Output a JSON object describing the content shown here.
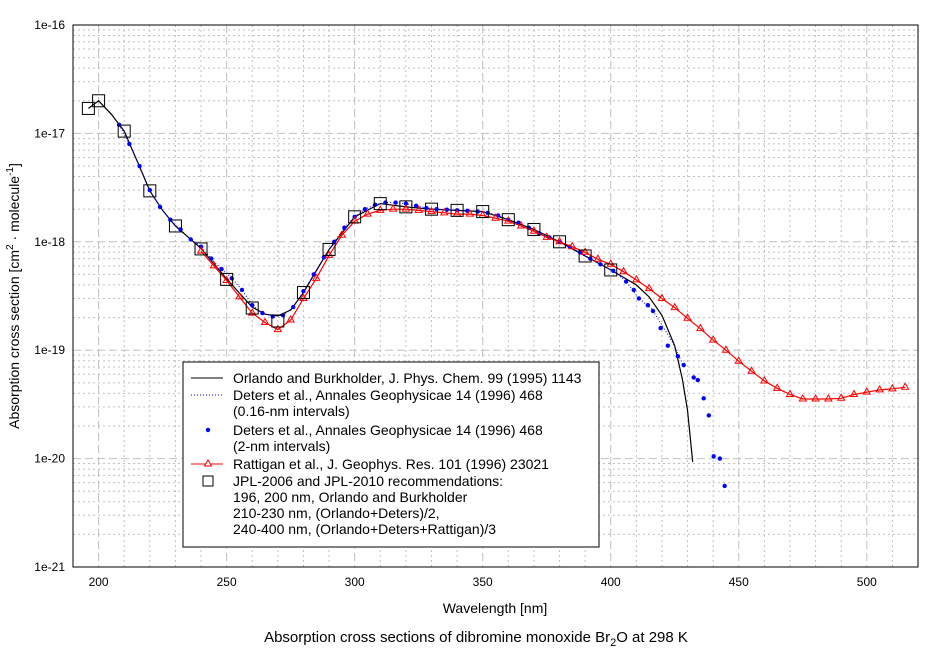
{
  "chart_data": {
    "type": "scatter",
    "title": {
      "prefix": "Absorption cross sections of dibromine monoxide Br",
      "sub": "2",
      "suffix": "O at 298 K"
    },
    "xlabel": "Wavelength [nm]",
    "ylabel": {
      "a": "Absorption cross section [cm",
      "sup1": "2",
      "b": " · molecule",
      "sup2": "-1",
      "c": "]"
    },
    "xlim": [
      190,
      520
    ],
    "ylim": [
      1e-21,
      1e-16
    ],
    "yscale": "log",
    "grid": true,
    "x_ticks": [
      200,
      250,
      300,
      350,
      400,
      450,
      500
    ],
    "x_tick_labels": [
      "200",
      "250",
      "300",
      "350",
      "400",
      "450",
      "500"
    ],
    "y_ticks": [
      1e-16,
      1e-17,
      1e-18,
      1e-19,
      1e-20,
      1e-21
    ],
    "y_tick_labels": [
      "1e-16",
      "1e-17",
      "1e-18",
      "1e-19",
      "1e-20",
      "1e-21"
    ],
    "legend_position": "bottom-left",
    "series": [
      {
        "name": "Orlando and Burkholder, J. Phys. Chem. 99 (1995) 1143",
        "style": "solid-line",
        "color": "#000000",
        "x": [
          196,
          200,
          205,
          210,
          215,
          220,
          225,
          230,
          240,
          250,
          260,
          265,
          270,
          275,
          280,
          285,
          290,
          300,
          310,
          320,
          330,
          340,
          350,
          360,
          370,
          380,
          390,
          400,
          410,
          415,
          420,
          425,
          428,
          430,
          432
        ],
        "y": [
          1.7e-17,
          2e-17,
          1.5e-17,
          1.05e-17,
          5.6e-18,
          2.95e-18,
          1.95e-18,
          1.4e-18,
          8.7e-19,
          4.55e-19,
          2.5e-19,
          2.15e-19,
          2.07e-19,
          2.35e-19,
          3.4e-19,
          5.4e-19,
          8.5e-19,
          1.7e-18,
          2.25e-18,
          2.1e-18,
          2e-18,
          1.95e-18,
          1.9e-18,
          1.6e-18,
          1.3e-18,
          1e-18,
          7.4e-19,
          5.5e-19,
          4e-19,
          3.1e-19,
          2.1e-19,
          1.1e-19,
          5.4e-20,
          2.8e-20,
          9.3e-21
        ]
      },
      {
        "name": "Deters et al., Annales Geophysicae 14 (1996) 468",
        "name_line2": "(0.16-nm intervals)",
        "style": "dotted-line",
        "color": "#0000ff",
        "x": [
          208,
          212,
          216,
          220,
          224,
          228,
          232,
          236,
          240,
          244,
          248,
          252,
          256,
          260,
          264,
          268,
          272,
          276,
          280,
          284,
          288,
          292,
          296,
          300,
          304,
          308,
          312,
          316,
          320,
          324,
          328,
          332,
          336,
          340,
          344,
          348,
          352,
          356,
          360,
          364,
          368,
          372,
          376,
          380,
          384,
          388,
          392,
          396,
          401,
          406,
          411,
          416,
          420,
          424,
          428
        ],
        "y": [
          1.2e-17,
          8e-18,
          5e-18,
          3e-18,
          2.1e-18,
          1.6e-18,
          1.3e-18,
          1.05e-18,
          9e-19,
          7e-19,
          5.6e-19,
          4.6e-19,
          3.6e-19,
          2.6e-19,
          2.2e-19,
          2.05e-19,
          2.1e-19,
          2.5e-19,
          3.5e-19,
          5e-19,
          7.2e-19,
          1e-18,
          1.35e-18,
          1.7e-18,
          2e-18,
          2.2e-18,
          2.3e-18,
          2.3e-18,
          2.25e-18,
          2.15e-18,
          2.05e-18,
          2e-18,
          1.98e-18,
          1.95e-18,
          1.93e-18,
          1.9e-18,
          1.85e-18,
          1.75e-18,
          1.6e-18,
          1.5e-18,
          1.35e-18,
          1.2e-18,
          1.1e-18,
          1e-18,
          9e-19,
          8e-19,
          7e-19,
          6.2e-19,
          5.4e-19,
          4.3e-19,
          3e-19,
          2.4e-19,
          1.7e-19,
          1.2e-19,
          7.5e-20
        ]
      },
      {
        "name": "Deters et al., Annales Geophysicae 14 (1996) 468",
        "name_line2": "(2-nm intervals)",
        "style": "dots",
        "color": "#0000ff",
        "x": [
          208,
          212,
          216,
          220,
          224,
          228,
          232,
          236,
          240,
          244,
          248,
          252,
          256,
          260,
          264,
          268,
          272,
          276,
          280,
          284,
          288,
          292,
          296,
          300,
          304,
          308,
          312,
          316,
          320,
          324,
          328,
          332,
          336,
          340,
          344,
          348,
          352,
          356,
          360,
          364,
          368,
          372,
          376,
          380,
          384,
          388,
          392,
          396,
          401,
          406,
          409,
          411,
          414.5,
          416.5,
          419.5,
          422.3,
          426.2,
          428.5,
          432.4,
          434,
          436.3,
          438.3,
          440.2,
          442.6,
          444.5
        ],
        "y": [
          1.2e-17,
          8e-18,
          5e-18,
          3e-18,
          2.1e-18,
          1.6e-18,
          1.3e-18,
          1.05e-18,
          9e-19,
          7e-19,
          5.6e-19,
          4.6e-19,
          3.6e-19,
          2.6e-19,
          2.2e-19,
          2.05e-19,
          2.1e-19,
          2.5e-19,
          3.5e-19,
          5e-19,
          7.2e-19,
          1e-18,
          1.35e-18,
          1.7e-18,
          2e-18,
          2.2e-18,
          2.3e-18,
          2.3e-18,
          2.25e-18,
          2.15e-18,
          2.05e-18,
          2e-18,
          1.98e-18,
          1.95e-18,
          1.93e-18,
          1.9e-18,
          1.85e-18,
          1.75e-18,
          1.6e-18,
          1.5e-18,
          1.35e-18,
          1.2e-18,
          1.1e-18,
          1e-18,
          9e-19,
          8e-19,
          7e-19,
          6.2e-19,
          5.4e-19,
          4.3e-19,
          3.6e-19,
          3e-19,
          2.6e-19,
          2.3e-19,
          1.6e-19,
          1.1e-19,
          8.8e-20,
          7.3e-20,
          5.6e-20,
          5.3e-20,
          3.6e-20,
          2.5e-20,
          1.05e-20,
          1e-20,
          5.6e-21
        ]
      },
      {
        "name": "Rattigan et al., J. Geophys. Res. 101 (1996) 23021",
        "style": "line-triangles",
        "color": "#ff0000",
        "x": [
          240,
          245,
          250,
          255,
          260,
          265,
          270,
          275,
          280,
          285,
          290,
          295,
          300,
          305,
          310,
          315,
          320,
          325,
          330,
          335,
          340,
          345,
          350,
          355,
          360,
          365,
          370,
          375,
          380,
          385,
          390,
          395,
          400,
          405,
          410,
          415,
          420,
          425,
          430,
          435,
          440,
          445,
          450,
          455,
          460,
          465,
          470,
          475,
          480,
          485,
          490,
          495,
          500,
          505,
          510,
          515
        ],
        "y": [
          8.2e-19,
          6e-19,
          4.4e-19,
          3.1e-19,
          2.2e-19,
          1.8e-19,
          1.55e-19,
          1.9e-19,
          3e-19,
          4.6e-19,
          7.5e-19,
          1.15e-18,
          1.55e-18,
          1.8e-18,
          1.95e-18,
          2e-18,
          2e-18,
          1.95e-18,
          1.9e-18,
          1.85e-18,
          1.8e-18,
          1.8e-18,
          1.75e-18,
          1.65e-18,
          1.55e-18,
          1.4e-18,
          1.25e-18,
          1.1e-18,
          1e-18,
          9e-19,
          8e-19,
          6.9e-19,
          6.2e-19,
          5.3e-19,
          4.45e-19,
          3.7e-19,
          3e-19,
          2.47e-19,
          1.97e-19,
          1.58e-19,
          1.24e-19,
          1e-19,
          7.9e-20,
          6.4e-20,
          5.2e-20,
          4.45e-20,
          3.9e-20,
          3.55e-20,
          3.55e-20,
          3.55e-20,
          3.6e-20,
          3.9e-20,
          4.1e-20,
          4.3e-20,
          4.4e-20,
          4.55e-20
        ]
      },
      {
        "name": "JPL-2006 and JPL-2010 recommendations:",
        "name_lines": [
          "196, 200 nm, Orlando and Burkholder",
          "210-230 nm, (Orlando+Deters)/2,",
          "240-400 nm, (Orlando+Deters+Rattigan)/3"
        ],
        "style": "open-squares",
        "color": "#000000",
        "x": [
          196,
          200,
          210,
          220,
          230,
          240,
          250,
          260,
          270,
          280,
          290,
          300,
          310,
          320,
          330,
          340,
          350,
          360,
          370,
          380,
          390,
          400
        ],
        "y": [
          1.7e-17,
          2e-17,
          1.05e-17,
          2.95e-18,
          1.4e-18,
          8.6e-19,
          4.5e-19,
          2.45e-19,
          1.86e-19,
          3.4e-19,
          8.5e-19,
          1.7e-18,
          2.25e-18,
          2.1e-18,
          2e-18,
          1.95e-18,
          1.9e-18,
          1.6e-18,
          1.3e-18,
          1e-18,
          7.4e-19,
          5.5e-19
        ]
      }
    ]
  }
}
